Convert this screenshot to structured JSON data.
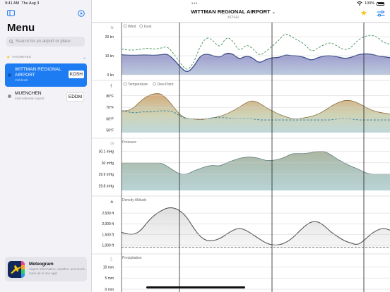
{
  "status": {
    "time": "9:41 AM",
    "date": "Thu Aug 3",
    "battery": "100%"
  },
  "sidebar": {
    "title": "Menu",
    "search_placeholder": "Search for an airport or place",
    "favorites_label": "FAVORITES",
    "items": [
      {
        "name": "WITTMAN REGIONAL AIRPORT",
        "subtitle": "Oshkosh",
        "code": "KOSH",
        "selected": true
      },
      {
        "name": "MUENCHEN",
        "subtitle": "International Airport",
        "code": "EDDM",
        "selected": false
      }
    ],
    "promo": {
      "title": "Meteogram",
      "description": "Airport information, weather, and much more all in one app!"
    }
  },
  "header": {
    "title": "WITTMAN REGIONAL AIRPORT",
    "subtitle": "KOSH"
  },
  "colors": {
    "accent": "#1e7cf2",
    "star": "#f5c518"
  },
  "panels": [
    {
      "id": "wind",
      "icon": "wind-icon",
      "legend": [
        "Wind",
        "Gust"
      ],
      "ticks": [
        "20 kn",
        "10 kn",
        "0 kn"
      ],
      "series_wind": [
        10.5,
        10.3,
        10.2,
        10.4,
        10.4,
        10.2,
        10.5,
        11,
        8,
        4,
        1,
        4,
        10,
        11,
        10,
        9,
        11.5,
        11,
        8,
        10,
        9,
        6,
        8,
        9,
        9,
        10.5,
        10,
        10,
        9,
        7.5,
        9,
        10,
        10,
        9.5,
        8.5,
        9,
        10.5,
        11,
        11,
        10,
        9.5,
        9
      ],
      "series_gust": [
        13.5,
        13,
        13,
        13.5,
        14,
        13.5,
        14,
        15,
        11,
        6,
        2,
        6,
        15,
        20,
        18,
        14,
        20,
        18,
        12,
        16,
        14,
        10,
        12,
        15,
        18,
        22,
        20,
        18,
        16,
        12,
        14,
        16,
        17,
        15,
        13,
        14,
        18,
        20,
        21,
        20,
        17,
        16
      ]
    },
    {
      "id": "temperature",
      "icon": "thermometer-icon",
      "legend": [
        "Temperature",
        "Dew Point"
      ],
      "ticks": [
        "80°F",
        "70°F",
        "60°F",
        "50°F"
      ],
      "series_temp": [
        67,
        67,
        70,
        76,
        80,
        82,
        82,
        77,
        70,
        63,
        60,
        60,
        59,
        60,
        61,
        62,
        64,
        67,
        70,
        74,
        76,
        74,
        70,
        67,
        64,
        62,
        60,
        60,
        61,
        62,
        64,
        67,
        71,
        74,
        76,
        76,
        74,
        71,
        68,
        66,
        65,
        64
      ],
      "series_dew": [
        67,
        66,
        65,
        66,
        66,
        66,
        67,
        67,
        66,
        62,
        60,
        60,
        60,
        60,
        61,
        61,
        61,
        60,
        60,
        60,
        60,
        59,
        59,
        59,
        59,
        59,
        59,
        59,
        59,
        59,
        59,
        59,
        59,
        60,
        60,
        60,
        59,
        59,
        59,
        59,
        59,
        59
      ]
    },
    {
      "id": "pressure",
      "icon": "gauge-icon",
      "title": "Pressure",
      "ticks": [
        "30.1 inHg",
        "30 inHg",
        "29.9 inHg",
        "29.8 inHg"
      ],
      "series": [
        30.0,
        30.0,
        30.0,
        30.0,
        30.0,
        30.0,
        30.0,
        29.97,
        29.93,
        29.9,
        29.9,
        29.93,
        29.95,
        29.97,
        29.98,
        29.97,
        30.0,
        30.02,
        30.04,
        30.05,
        30.05,
        30.04,
        30.02,
        30.02,
        30.03,
        30.05,
        30.08,
        30.08,
        30.08,
        30.09,
        30.1,
        30.1,
        30.07,
        30.03,
        30.0,
        29.97,
        29.95,
        29.92,
        29.9,
        29.9,
        29.9,
        29.9
      ]
    },
    {
      "id": "density-altitude",
      "icon": "mountain-icon",
      "title": "Density Altitude",
      "ticks": [
        "2,500 ft",
        "2,000 ft",
        "1,500 ft",
        "1,000 ft"
      ],
      "series": [
        1600,
        1500,
        1500,
        1700,
        2100,
        2400,
        2600,
        2750,
        2750,
        2600,
        2300,
        1800,
        1400,
        1200,
        1200,
        1300,
        1500,
        1700,
        1800,
        1700,
        1500,
        1300,
        1100,
        1000,
        1000,
        1100,
        1300,
        1600,
        1900,
        2100,
        2100,
        1900,
        1600,
        1400,
        1200,
        1100,
        1000,
        1200,
        1500,
        1700,
        1800,
        1700
      ],
      "baseline": 900
    },
    {
      "id": "precipitation",
      "icon": "drop-icon",
      "title": "Precipitation",
      "ticks": [
        "10 mm",
        "5 mm",
        "0 mm"
      ]
    }
  ]
}
